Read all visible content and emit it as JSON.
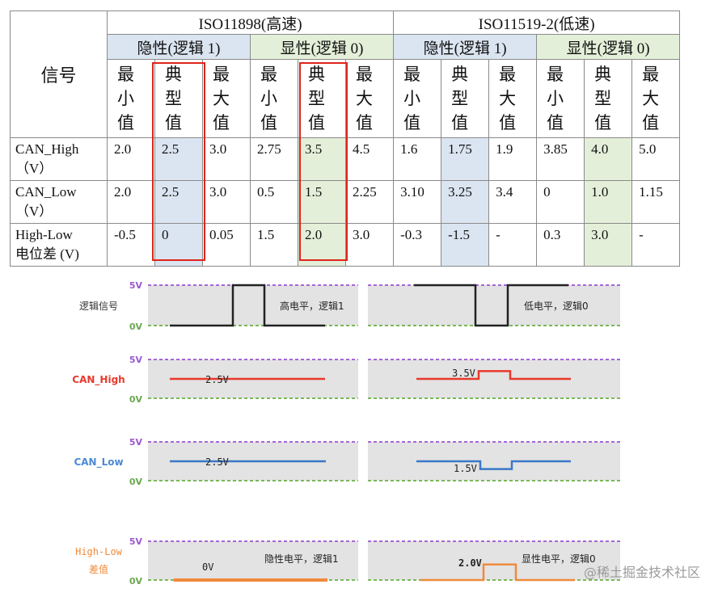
{
  "table": {
    "signal_header": "信号",
    "standards": [
      "ISO11898(高速)",
      "ISO11519-2(低速)"
    ],
    "states": [
      "隐性(逻辑 1)",
      "显性(逻辑 0)",
      "隐性(逻辑 1)",
      "显性(逻辑 0)"
    ],
    "col_heads": [
      [
        "最",
        "小",
        "值"
      ],
      [
        "典",
        "型",
        "值"
      ],
      [
        "最",
        "大",
        "值"
      ],
      [
        "最",
        "小",
        "值"
      ],
      [
        "典",
        "型",
        "值"
      ],
      [
        "最",
        "大",
        "值"
      ],
      [
        "最",
        "小",
        "值"
      ],
      [
        "典",
        "型",
        "值"
      ],
      [
        "最",
        "大",
        "值"
      ],
      [
        "最",
        "小",
        "值"
      ],
      [
        "典",
        "型",
        "值"
      ],
      [
        "最",
        "大",
        "值"
      ]
    ],
    "rows": [
      {
        "label": [
          "CAN_High",
          "（V）"
        ],
        "values": [
          "2.0",
          "2.5",
          "3.0",
          "2.75",
          "3.5",
          "4.5",
          "1.6",
          "1.75",
          "1.9",
          "3.85",
          "4.0",
          "5.0"
        ]
      },
      {
        "label": [
          "CAN_Low",
          "（V）"
        ],
        "values": [
          "2.0",
          "2.5",
          "3.0",
          "0.5",
          "1.5",
          "2.25",
          "3.10",
          "3.25",
          "3.4",
          "0",
          "1.0",
          "1.15"
        ]
      },
      {
        "label": [
          "High-Low",
          "电位差 (V)"
        ],
        "values": [
          "-0.5",
          "0",
          "0.05",
          "1.5",
          "2.0",
          "3.0",
          "-0.3",
          "-1.5",
          "-",
          "0.3",
          "3.0",
          "-"
        ]
      }
    ]
  },
  "waveforms": {
    "rows": [
      {
        "name": "逻辑信号",
        "color": "#222222",
        "label_color": "#333333",
        "top_label": "",
        "bottom_label": "0V",
        "left": {
          "level": "",
          "caption": "高电平，逻辑1"
        },
        "right": {
          "level": "",
          "caption": "低电平，逻辑0"
        }
      },
      {
        "name": "CAN_High",
        "color": "#e8392c",
        "label_color": "#e8392c",
        "top_label": "5V",
        "bottom_label": "0V",
        "left": {
          "level": "2.5V",
          "caption": ""
        },
        "right": {
          "level": "3.5V",
          "caption": ""
        }
      },
      {
        "name": "CAN_Low",
        "color": "#3a78c8",
        "label_color": "#4a8ad4",
        "top_label": "5V",
        "bottom_label": "0V",
        "left": {
          "level": "2.5V",
          "caption": ""
        },
        "right": {
          "level": "1.5V",
          "caption": ""
        }
      },
      {
        "name": "High-Low差值",
        "color": "#ef8a3c",
        "label_color": "#ef8a3c",
        "top_label": "5V",
        "bottom_label": "0V",
        "left": {
          "level": "0V",
          "caption": "隐性电平，逻辑1"
        },
        "right": {
          "level": "2.0V",
          "caption": "显性电平，逻辑0"
        }
      }
    ],
    "first_top_label": "5V",
    "level_line_color": "#a566d6",
    "zero_line_color": "#7ab85a"
  },
  "watermark": "@稀土掘金技术社区"
}
